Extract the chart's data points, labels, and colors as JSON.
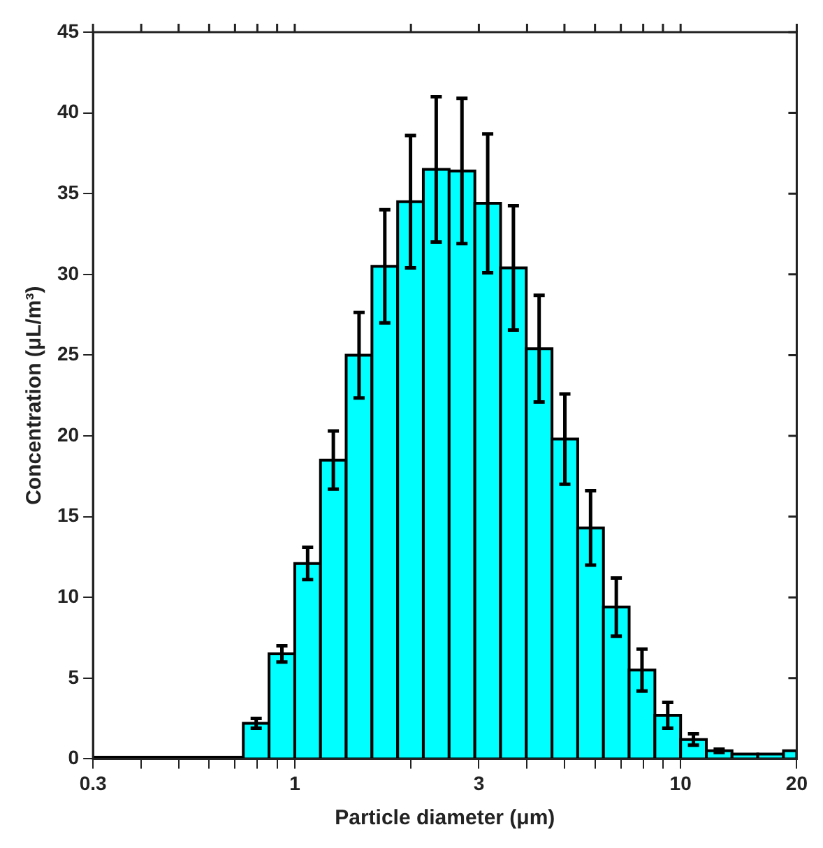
{
  "chart_data": {
    "type": "histogram",
    "xlabel": "Particle diameter (μm)",
    "ylabel": "Concentration (μL/m³)",
    "bins": [
      0.3,
      0.3415,
      0.3981,
      0.4642,
      0.5412,
      0.631,
      0.7356,
      0.8577,
      1,
      1.166,
      1.359,
      1.585,
      1.848,
      2.154,
      2.512,
      2.929,
      3.415,
      3.981,
      4.642,
      5.412,
      6.31,
      7.356,
      8.577,
      10,
      11.66,
      13.59,
      15.85,
      18.48,
      20
    ],
    "values": [
      0.1,
      0.1,
      0.1,
      0.1,
      0.1,
      0.1,
      2.2,
      6.5,
      12.1,
      18.5,
      25,
      30.5,
      34.5,
      36.5,
      36.4,
      34.4,
      30.4,
      25.4,
      19.8,
      14.3,
      9.4,
      5.5,
      2.7,
      1.2,
      0.5,
      0.3,
      0.3,
      0.5
    ],
    "errors": [
      null,
      null,
      null,
      null,
      null,
      null,
      0.3,
      0.5,
      1.0,
      1.8,
      2.65,
      3.5,
      4.1,
      4.5,
      4.5,
      4.3,
      3.85,
      3.3,
      2.8,
      2.3,
      1.8,
      1.3,
      0.8,
      0.35,
      0.1,
      null,
      null,
      null
    ],
    "color": "#00ffff",
    "log": "x",
    "xlim": [
      0.3,
      20
    ],
    "xticks": [
      0.3,
      {
        "value": 0.4,
        "label": null
      },
      {
        "value": 0.5,
        "label": null
      },
      {
        "value": 0.6,
        "label": null
      },
      {
        "value": 0.7,
        "label": null
      },
      {
        "value": 0.8,
        "label": null
      },
      {
        "value": 0.9,
        "label": null
      },
      1,
      {
        "value": 2,
        "label": null
      },
      3,
      {
        "value": 4,
        "label": null
      },
      {
        "value": 5,
        "label": null
      },
      {
        "value": 6,
        "label": null
      },
      {
        "value": 7,
        "label": null
      },
      {
        "value": 8,
        "label": null
      },
      {
        "value": 9,
        "label": null
      },
      10,
      20
    ],
    "ylim": [
      0,
      45
    ],
    "yticks": [
      0,
      5,
      10,
      15,
      20,
      25,
      30,
      35,
      40,
      45
    ],
    "grid": false,
    "legend": false
  }
}
